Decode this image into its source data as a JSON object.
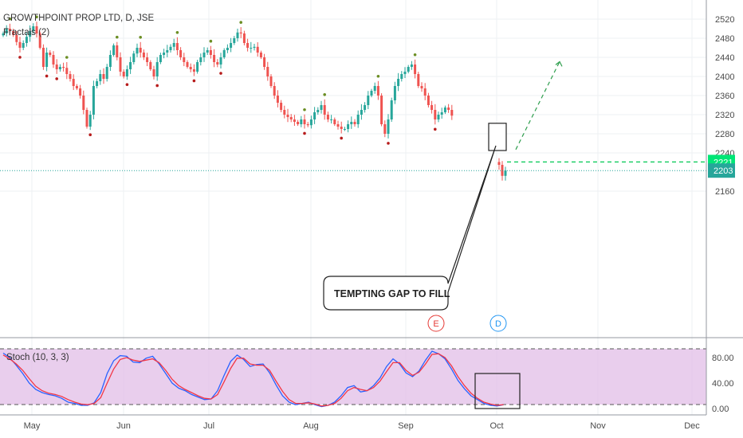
{
  "header": {
    "symbol_title": "GROWTHPOINT PROP LTD, D, JSE",
    "indicator_label": "Fractals (2)"
  },
  "stoch": {
    "label": "Stoch (10, 3, 3)",
    "k_color": "#2962ff",
    "d_color": "#f23645",
    "band_color": "#e1bee7"
  },
  "annotations": {
    "callout": "TEMPTING GAP TO FILL",
    "wave_e": "E",
    "wave_d": "D",
    "wave_e_color": "#e53935",
    "wave_d_color": "#2196f3"
  },
  "price_badges": {
    "target": "2221",
    "target_color": "#00e676",
    "last": "2203",
    "last_color": "#26a69a"
  },
  "colors": {
    "up": "#26a69a",
    "down": "#ef5350",
    "fractal_up": "#6b8e23",
    "fractal_down": "#b71c1c",
    "grid": "#eef0f3"
  },
  "chart_data": [
    {
      "type": "candlestick",
      "title": "GROWTHPOINT PROP LTD, D, JSE",
      "x_ticks": [
        "May",
        "Jun",
        "Jul",
        "Aug",
        "Sep",
        "Oct",
        "Nov",
        "Dec"
      ],
      "y_ticks": [
        "2520",
        "2480",
        "2440",
        "2400",
        "2360",
        "2320",
        "2280",
        "2240",
        "2160"
      ],
      "ylim": [
        2140,
        2530
      ],
      "gap_target": 2221,
      "last_price": 2203,
      "closes": [
        2490,
        2500,
        2495,
        2487,
        2472,
        2460,
        2470,
        2483,
        2495,
        2505,
        2490,
        2460,
        2420,
        2450,
        2445,
        2425,
        2415,
        2420,
        2418,
        2405,
        2395,
        2380,
        2375,
        2360,
        2330,
        2295,
        2320,
        2380,
        2390,
        2405,
        2395,
        2420,
        2445,
        2465,
        2440,
        2410,
        2400,
        2415,
        2430,
        2448,
        2460,
        2450,
        2440,
        2430,
        2415,
        2400,
        2430,
        2445,
        2450,
        2455,
        2462,
        2470,
        2455,
        2440,
        2430,
        2420,
        2415,
        2410,
        2430,
        2440,
        2450,
        2455,
        2445,
        2430,
        2425,
        2440,
        2455,
        2460,
        2470,
        2480,
        2492,
        2490,
        2470,
        2460,
        2460,
        2462,
        2450,
        2440,
        2420,
        2400,
        2380,
        2360,
        2345,
        2330,
        2320,
        2315,
        2310,
        2305,
        2300,
        2310,
        2300,
        2298,
        2310,
        2325,
        2330,
        2340,
        2320,
        2310,
        2310,
        2300,
        2295,
        2290,
        2290,
        2300,
        2305,
        2300,
        2320,
        2330,
        2340,
        2360,
        2370,
        2380,
        2360,
        2300,
        2280,
        2310,
        2350,
        2380,
        2395,
        2405,
        2410,
        2420,
        2425,
        2405,
        2380,
        2375,
        2360,
        2340,
        2330,
        2310,
        2320,
        2325,
        2335,
        2330,
        2318
      ],
      "gap_closes": [
        2215,
        2192,
        2203
      ],
      "fractal_up_count": 17,
      "fractal_down_count": 19
    },
    {
      "type": "line",
      "title": "Stoch (10, 3, 3)",
      "y_ticks": [
        "80.00",
        "40.00",
        "0.00"
      ],
      "ylim": [
        0,
        100
      ],
      "levels": [
        80,
        20
      ],
      "series": [
        {
          "name": "%K",
          "values": [
            87,
            80,
            68,
            55,
            40,
            30,
            25,
            22,
            20,
            16,
            10,
            8,
            5,
            5,
            9,
            25,
            55,
            75,
            83,
            82,
            73,
            72,
            79,
            82,
            70,
            55,
            40,
            32,
            28,
            22,
            18,
            14,
            15,
            28,
            52,
            74,
            84,
            77,
            66,
            69,
            70,
            56,
            37,
            20,
            10,
            6,
            8,
            10,
            6,
            3,
            5,
            10,
            20,
            33,
            36,
            26,
            28,
            36,
            48,
            66,
            78,
            70,
            56,
            50,
            59,
            76,
            90,
            86,
            78,
            62,
            44,
            31,
            20,
            14,
            8,
            5,
            4,
            6
          ]
        },
        {
          "name": "%D",
          "values": [
            84,
            78,
            70,
            60,
            47,
            35,
            28,
            24,
            22,
            19,
            14,
            10,
            7,
            6,
            8,
            17,
            40,
            62,
            77,
            80,
            76,
            74,
            76,
            78,
            72,
            60,
            46,
            36,
            30,
            25,
            20,
            16,
            15,
            22,
            42,
            63,
            79,
            79,
            70,
            68,
            68,
            60,
            43,
            27,
            14,
            8,
            8,
            9,
            7,
            4,
            5,
            8,
            16,
            28,
            33,
            30,
            28,
            33,
            43,
            58,
            72,
            72,
            60,
            52,
            57,
            70,
            85,
            86,
            80,
            67,
            50,
            36,
            24,
            16,
            10,
            7,
            5,
            6
          ]
        }
      ]
    }
  ]
}
